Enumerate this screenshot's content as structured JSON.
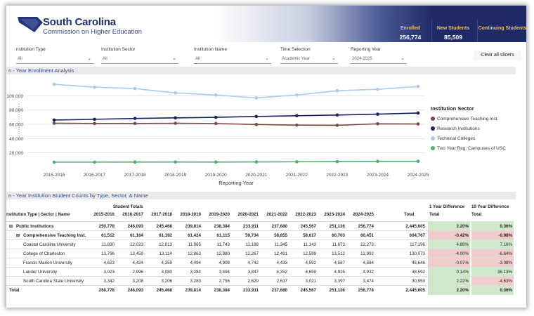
{
  "header": {
    "org_name": "South Carolina",
    "org_sub": "Commission on Higher Education",
    "kpis": [
      {
        "label": "Enrolled",
        "value": "256,774"
      },
      {
        "label": "New Students",
        "value": "85,509"
      },
      {
        "label": "Continuing Students",
        "value": ""
      }
    ]
  },
  "filters": [
    {
      "label": "nstitution Type",
      "value": "All"
    },
    {
      "label": "Institution Sector",
      "value": "All"
    },
    {
      "label": "Institution Name",
      "value": "All"
    },
    {
      "label": "Time Selection",
      "value": "Academic Year"
    },
    {
      "label": "Reporting Year",
      "value": "2024-2025"
    }
  ],
  "clear_label": "Clear all slicers",
  "chart_section_title": "n - Year Enrollment Analysis",
  "table_section_title": "n - Year Institution Student Counts by Type, Sector, & Name",
  "chart_data": {
    "type": "line",
    "x": [
      "2015-2016",
      "2016-2017",
      "2017-2018",
      "2018-2019",
      "2019-2020",
      "2020-2021",
      "2021-2022",
      "2022-2023",
      "2023-2024",
      "2024-2025"
    ],
    "xlabel": "Reporting Year",
    "ylabel": "",
    "yticks": [
      "20,000",
      "40,000",
      "60,000",
      "80,000",
      "100,000"
    ],
    "ylim": [
      0,
      120000
    ],
    "legend_title": "Institution Sector",
    "series": [
      {
        "name": "Comprehensive Teaching Inst.",
        "color": "#7a4a4a",
        "values": [
          61512,
          61164,
          61192,
          61424,
          61115,
          59734,
          58855,
          58617,
          60703,
          60451
        ]
      },
      {
        "name": "Research Institutions",
        "color": "#1a1f5e",
        "values": [
          66000,
          67000,
          68200,
          69000,
          69800,
          71000,
          72000,
          73000,
          74200,
          75800
        ]
      },
      {
        "name": "Technical Colleges",
        "color": "#a9cbe9",
        "values": [
          116000,
          112000,
          110000,
          104000,
          101000,
          97000,
          101000,
          107000,
          109000,
          113000
        ]
      },
      {
        "name": "Two Year Reg. Campuses of USC",
        "color": "#4caf6e",
        "values": [
          7000,
          7000,
          7100,
          7200,
          7100,
          7300,
          7500,
          7700,
          8100,
          8200
        ]
      }
    ]
  },
  "table": {
    "student_totals_label": "Student Totals",
    "name_header": "nstitution Type | Sector | Name",
    "year_headers": [
      "2015-2016",
      "2016-2017",
      "2017-2018",
      "2018-2019",
      "2019-2020",
      "2020-2021",
      "2021-2022",
      "2022-2023",
      "2023-2024",
      "2024-2025"
    ],
    "total_header": "Total",
    "diff1_header": "1 Year Difference",
    "diff10_header": "10 Year Difference",
    "diff_sub": "Total",
    "rows": [
      {
        "name": "Public Institutions",
        "level": 0,
        "bold": true,
        "expand": "⊟",
        "values": [
          "250,778",
          "246,093",
          "245,468",
          "239,814",
          "238,384",
          "233,911",
          "237,680",
          "245,567",
          "251,136",
          "256,774"
        ],
        "total": "2,445,605",
        "d1": "2.20%",
        "d10": "0.36%",
        "d1s": "pos",
        "d10s": "pos"
      },
      {
        "name": "Comprehensive Teaching Inst.",
        "level": 1,
        "bold": true,
        "expand": "⊟",
        "values": [
          "61,512",
          "61,164",
          "61,192",
          "61,424",
          "61,115",
          "59,734",
          "58,855",
          "58,617",
          "60,703",
          "60,451"
        ],
        "total": "604,767",
        "d1": "-0.42%",
        "d10": "-0.98%",
        "d1s": "neg",
        "d10s": "neg"
      },
      {
        "name": "Coastal Carolina University",
        "level": 2,
        "bold": false,
        "expand": "",
        "values": [
          "11,830",
          "12,023",
          "12,013",
          "11,965",
          "11,743",
          "11,188",
          "11,345",
          "11,143",
          "11,673",
          "12,273"
        ],
        "total": "117,196",
        "d1": "4.89%",
        "d10": "7.16%",
        "d1s": "pos",
        "d10s": "pos"
      },
      {
        "name": "College of Charleston",
        "level": 2,
        "bold": false,
        "expand": "",
        "values": [
          "13,796",
          "13,459",
          "13,114",
          "12,863",
          "12,980",
          "12,267",
          "12,491",
          "12,599",
          "13,512",
          "12,992"
        ],
        "total": "130,073",
        "d1": "-4.00%",
        "d10": "-6.64%",
        "d1s": "neg",
        "d10s": "neg"
      },
      {
        "name": "Francis Marion University",
        "level": 2,
        "bold": false,
        "expand": "",
        "values": [
          "4,623",
          "4,424",
          "4,259",
          "4,494",
          "4,908",
          "4,742",
          "4,433",
          "4,592",
          "4,587",
          "4,584"
        ],
        "total": "45,646",
        "d1": "-0.07%",
        "d10": "-3.08%",
        "d1s": "neg",
        "d10s": "neg"
      },
      {
        "name": "Lander University",
        "level": 2,
        "bold": false,
        "expand": "",
        "values": [
          "3,023",
          "2,996",
          "3,080",
          "3,284",
          "3,494",
          "3,847",
          "4,352",
          "4,659",
          "4,925",
          "4,932"
        ],
        "total": "38,592",
        "d1": "0.14%",
        "d10": "36.13%",
        "d1s": "pos",
        "d10s": "pos"
      },
      {
        "name": "South Carolina State University",
        "level": 2,
        "bold": false,
        "expand": "",
        "values": [
          "3,342",
          "3,208",
          "3,206",
          "3,283",
          "2,756",
          "2,629",
          "2,637",
          "3,021",
          "3,397",
          "3,474"
        ],
        "total": "30,953",
        "d1": "2.22%",
        "d10": "-4.63%",
        "d1s": "pos",
        "d10s": "neg"
      },
      {
        "name": "Total",
        "level": 0,
        "bold": true,
        "expand": "",
        "values": [
          "250,778",
          "246,093",
          "245,468",
          "239,814",
          "238,384",
          "233,911",
          "237,680",
          "245,567",
          "251,136",
          "256,774"
        ],
        "total": "2,445,605",
        "d1": "2.20%",
        "d10": "0.36%",
        "d1s": "pos",
        "d10s": "pos"
      }
    ]
  }
}
